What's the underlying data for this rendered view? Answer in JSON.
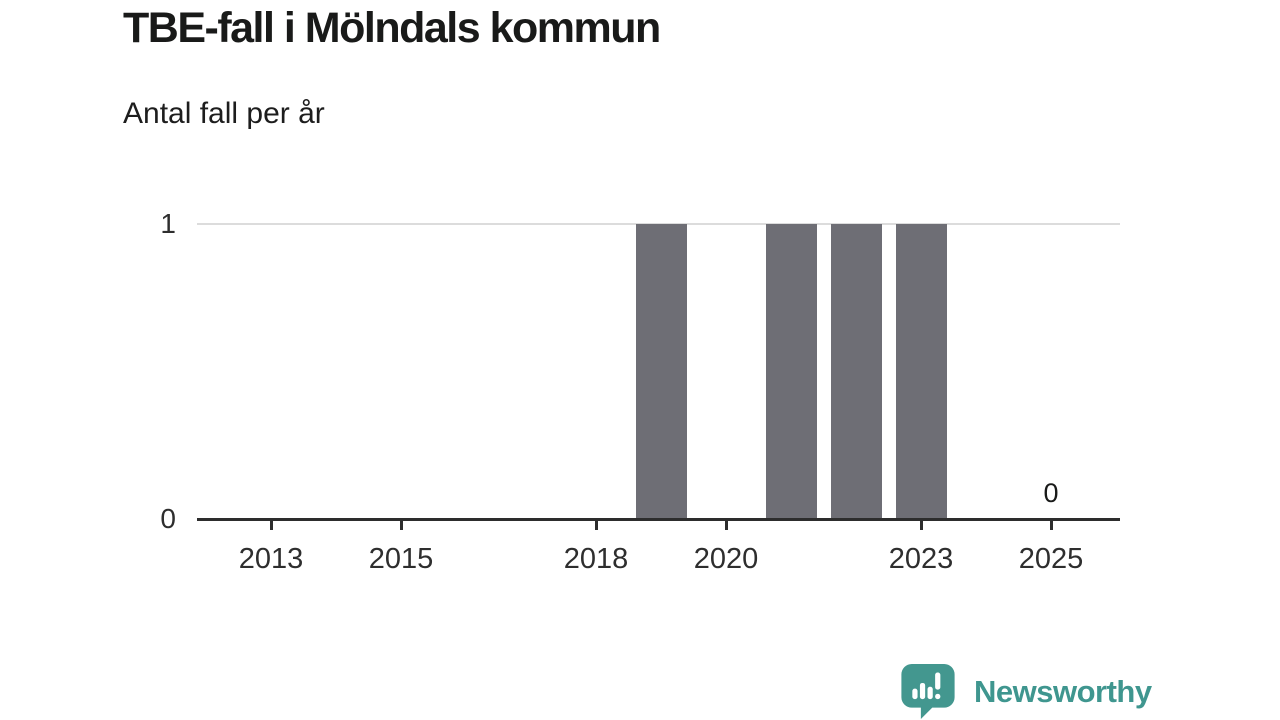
{
  "header": {
    "title": "TBE-fall i Mölndals kommun",
    "subtitle": "Antal fall per år"
  },
  "chart_data": {
    "type": "bar",
    "title": "TBE-fall i Mölndals kommun",
    "subtitle": "Antal fall per år",
    "categories": [
      "2012",
      "2013",
      "2014",
      "2015",
      "2016",
      "2017",
      "2018",
      "2019",
      "2020",
      "2021",
      "2022",
      "2023",
      "2024",
      "2025"
    ],
    "values": [
      0,
      0,
      0,
      0,
      0,
      0,
      0,
      1,
      0,
      1,
      1,
      1,
      0,
      0
    ],
    "x_tick_labels": [
      "2013",
      "2015",
      "2018",
      "2020",
      "2023",
      "2025"
    ],
    "y_tick_labels": [
      "0",
      "1"
    ],
    "ylim": [
      0,
      1
    ],
    "grid": "single horizontal gridline at y=1",
    "legend": "none",
    "bar_color": "#6e6e75",
    "gridline_color": "#dcdcdc",
    "axis_color": "#2d2d2d",
    "last_value_label": {
      "year": "2025",
      "text": "0"
    }
  },
  "branding": {
    "name": "Newsworthy",
    "color": "#3f968f",
    "icon_color": "#43978f"
  }
}
